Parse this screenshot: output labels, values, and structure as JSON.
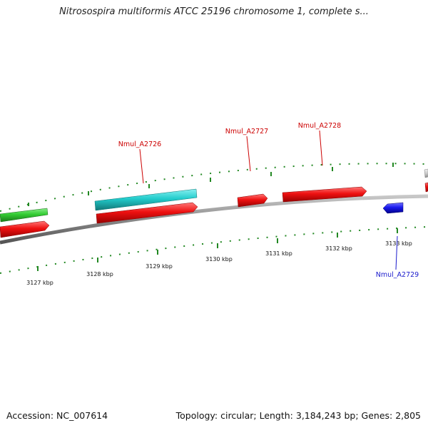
{
  "title": "Nitrosospira multiformis ATCC 25196 chromosome 1, complete s...",
  "footer": {
    "accession": "Accession: NC_007614",
    "summary": "Topology: circular; Length: 3,184,243 bp; Genes: 2,805"
  },
  "colors": {
    "forward_gene": "#ee1111",
    "reverse_gene": "#1a1aee",
    "other_feature_green": "#33cc33",
    "other_feature_cyan": "#22cccc",
    "other_feature_gray": "#cccccc",
    "tick": "#228822",
    "backbone": "#888888",
    "label_forward": "#cc0000",
    "label_reverse": "#1a1acc"
  },
  "ticks": [
    "3127 kbp",
    "3128 kbp",
    "3129 kbp",
    "3130 kbp",
    "3131 kbp",
    "3132 kbp",
    "3133 kbp"
  ],
  "gene_labels": [
    {
      "name": "Nmul_A2726",
      "strand": "forward"
    },
    {
      "name": "Nmul_A2727",
      "strand": "forward"
    },
    {
      "name": "Nmul_A2728",
      "strand": "forward"
    },
    {
      "name": "Nmul_A2729",
      "strand": "reverse"
    }
  ]
}
